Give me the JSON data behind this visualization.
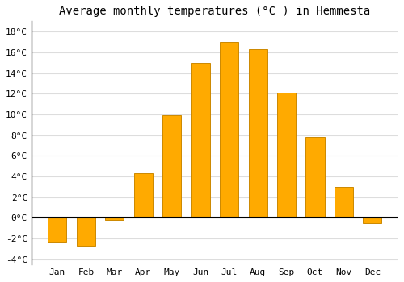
{
  "title": "Average monthly temperatures (°C ) in Hemmesta",
  "months": [
    "Jan",
    "Feb",
    "Mar",
    "Apr",
    "May",
    "Jun",
    "Jul",
    "Aug",
    "Sep",
    "Oct",
    "Nov",
    "Dec"
  ],
  "values": [
    -2.3,
    -2.7,
    -0.2,
    4.3,
    9.9,
    15.0,
    17.0,
    16.3,
    12.1,
    7.8,
    3.0,
    -0.5
  ],
  "bar_color": "#FFAA00",
  "bar_edge_color": "#CC8800",
  "ylim": [
    -4.5,
    19
  ],
  "yticks": [
    -4,
    -2,
    0,
    2,
    4,
    6,
    8,
    10,
    12,
    14,
    16,
    18
  ],
  "ytick_labels": [
    "-4°C",
    "-2°C",
    "0°C",
    "2°C",
    "4°C",
    "6°C",
    "8°C",
    "10°C",
    "12°C",
    "14°C",
    "16°C",
    "18°C"
  ],
  "fig_background_color": "#ffffff",
  "plot_background_color": "#ffffff",
  "grid_color": "#dddddd",
  "title_fontsize": 10,
  "tick_fontsize": 8,
  "zero_line_color": "#000000",
  "left_spine_color": "#333333"
}
